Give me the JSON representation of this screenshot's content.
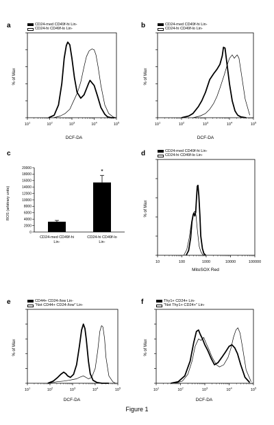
{
  "figure": {
    "caption": "Figure 1"
  },
  "panels": {
    "a": {
      "label": "a",
      "legend": [
        "CD24-med CD49f-hi Lin-",
        "CD24-hi CD49f-lo Lin-"
      ],
      "ylabel": "% of Max",
      "xlabel": "DCF-DA"
    },
    "b": {
      "label": "b",
      "legend": [
        "CD24-med CD49f-hi Lin-",
        "CD24-hi CD49f-lo Lin-"
      ],
      "ylabel": "% of Max",
      "xlabel": "DCF-DA"
    },
    "c": {
      "label": "c",
      "ylabel": "ROS (arbitrary units)",
      "categories": [
        "CD24-med CD49f-hi Lin-",
        "CD24-hi CD49f-lo Lin-"
      ],
      "significance": "*"
    },
    "d": {
      "label": "d",
      "legend": [
        "CD24-med CD49f-hi Lin-",
        "CD24-hi CD49f-lo Lin-"
      ],
      "ylabel": "% of Max",
      "xlabel": "MitoSOX Red"
    },
    "e": {
      "label": "e",
      "legend": [
        "CD44+ CD24-/low Lin-",
        "\"Not CD44+ CD24-/low\" Lin-"
      ],
      "ylabel": "% of Max",
      "xlabel": "DCF-DA"
    },
    "f": {
      "label": "f",
      "legend": [
        "Thy1+ CD24+ Lin-",
        "\"Not Thy1+ CD24+\" Lin-"
      ],
      "ylabel": "% of Max",
      "xlabel": "DCF-DA"
    }
  },
  "chart_data": [
    {
      "panel": "a",
      "type": "line",
      "x_scale": "log",
      "xlim": [
        10,
        100000
      ],
      "ylim": [
        0,
        100
      ],
      "xticks": [
        10,
        100,
        1000,
        10000,
        100000
      ],
      "xtick_labels": [
        "10^1",
        "10^2",
        "10^3",
        "10^4",
        "10^5"
      ],
      "yticks": [
        0,
        20,
        40,
        60,
        80,
        100
      ],
      "series": [
        {
          "name": "CD24-med CD49f-hi Lin-",
          "style": "thick",
          "x": [
            90,
            160,
            250,
            350,
            450,
            560,
            650,
            800,
            1000,
            1300,
            1700,
            2500,
            3500,
            4500,
            5500,
            6500,
            8000,
            10000,
            14000,
            20000,
            30000,
            40000,
            60000,
            80000
          ],
          "y": [
            0,
            3,
            15,
            40,
            70,
            85,
            89,
            86,
            70,
            47,
            30,
            23,
            27,
            34,
            40,
            44,
            41,
            38,
            26,
            12,
            4,
            1,
            0,
            0
          ]
        },
        {
          "name": "CD24-hi CD49f-lo Lin-",
          "style": "thin",
          "x": [
            150,
            300,
            500,
            800,
            1200,
            1800,
            2500,
            3500,
            4500,
            6000,
            8000,
            10000,
            12000,
            15000,
            20000,
            30000,
            45000,
            70000,
            100000
          ],
          "y": [
            0,
            2,
            5,
            10,
            20,
            30,
            42,
            60,
            72,
            79,
            81,
            80,
            74,
            60,
            38,
            15,
            5,
            1,
            0
          ]
        }
      ]
    },
    {
      "panel": "b",
      "type": "line",
      "x_scale": "log",
      "xlim": [
        10,
        100000
      ],
      "ylim": [
        0,
        100
      ],
      "xticks": [
        10,
        100,
        1000,
        10000,
        100000
      ],
      "xtick_labels": [
        "10^1",
        "10^2",
        "10^3",
        "10^4",
        "10^5"
      ],
      "yticks": [
        0,
        20,
        40,
        60,
        80,
        100
      ],
      "series": [
        {
          "name": "CD24-med CD49f-hi Lin-",
          "style": "thick",
          "x": [
            100,
            200,
            300,
            500,
            700,
            1000,
            1500,
            2200,
            3000,
            4000,
            5000,
            5600,
            6500,
            8000,
            10000,
            13000,
            17000,
            22000,
            30000,
            50000
          ],
          "y": [
            0,
            2,
            5,
            13,
            20,
            30,
            45,
            52,
            57,
            63,
            73,
            83,
            82,
            62,
            40,
            20,
            8,
            3,
            1,
            0
          ]
        },
        {
          "name": "CD24-hi CD49f-lo Lin-",
          "style": "thin",
          "x": [
            300,
            600,
            1000,
            1500,
            2200,
            3000,
            4000,
            6000,
            8000,
            10000,
            13000,
            16000,
            18000,
            21000,
            25000,
            32000,
            45000,
            70000
          ],
          "y": [
            0,
            2,
            5,
            10,
            17,
            25,
            35,
            50,
            62,
            70,
            74,
            70,
            72,
            74,
            70,
            50,
            22,
            3
          ]
        }
      ]
    },
    {
      "panel": "c",
      "type": "bar",
      "categories": [
        "CD24-med CD49f-hi Lin-",
        "CD24-hi CD49f-lo Lin-"
      ],
      "values": [
        3200,
        15400
      ],
      "errors": [
        400,
        2200
      ],
      "ylim": [
        0,
        20000
      ],
      "yticks": [
        0,
        2000,
        4000,
        6000,
        8000,
        10000,
        12000,
        14000,
        16000,
        18000,
        20000
      ],
      "ylabel": "ROS (arbitrary units)",
      "annotations": [
        {
          "category": "CD24-hi CD49f-lo Lin-",
          "text": "*"
        }
      ]
    },
    {
      "panel": "d",
      "type": "line",
      "x_scale": "log",
      "xlim": [
        10,
        100000
      ],
      "ylim": [
        0,
        100
      ],
      "xticks": [
        10,
        100,
        1000,
        10000,
        100000
      ],
      "xtick_labels": [
        "10",
        "100",
        "1000",
        "10000",
        "100000"
      ],
      "yticks": [
        0,
        20,
        40,
        60,
        80,
        100
      ],
      "series": [
        {
          "name": "CD24-med CD49f-hi Lin-",
          "style": "thick",
          "x": [
            150,
            190,
            230,
            260,
            290,
            310,
            340,
            370,
            400,
            430,
            460,
            500,
            550,
            600,
            700,
            800,
            950
          ],
          "y": [
            0,
            5,
            18,
            35,
            42,
            44,
            41,
            45,
            60,
            72,
            73,
            62,
            42,
            20,
            7,
            2,
            0
          ]
        },
        {
          "name": "CD24-hi CD49f-lo Lin-",
          "style": "thin",
          "x": [
            120,
            160,
            200,
            250,
            300,
            340,
            380,
            420,
            470,
            520,
            600,
            700,
            850
          ],
          "y": [
            0,
            6,
            18,
            35,
            44,
            46,
            42,
            30,
            18,
            9,
            4,
            1,
            0
          ]
        }
      ]
    },
    {
      "panel": "e",
      "type": "line",
      "x_scale": "log",
      "xlim": [
        10,
        100000
      ],
      "ylim": [
        0,
        100
      ],
      "xticks": [
        10,
        100,
        1000,
        10000,
        100000
      ],
      "xtick_labels": [
        "10^1",
        "10^2",
        "10^3",
        "10^4",
        "10^5"
      ],
      "yticks": [
        0,
        20,
        40,
        60,
        80,
        100
      ],
      "series": [
        {
          "name": "CD44+ CD24-/low Lin-",
          "style": "thick",
          "x": [
            80,
            140,
            220,
            300,
            400,
            500,
            600,
            800,
            1100,
            1500,
            2000,
            2500,
            3000,
            3500,
            4000,
            5000,
            6000,
            8000,
            12000,
            20000,
            40000
          ],
          "y": [
            0,
            3,
            8,
            12,
            15,
            13,
            10,
            8,
            12,
            25,
            50,
            72,
            80,
            74,
            60,
            30,
            13,
            4,
            1,
            0,
            0
          ]
        },
        {
          "name": "\"Not CD44+ CD24-/low\" Lin-",
          "style": "thin",
          "x": [
            80,
            200,
            400,
            700,
            1000,
            1500,
            2000,
            3000,
            5000,
            7000,
            10000,
            13000,
            16000,
            19000,
            22000,
            26000,
            30000,
            40000,
            60000,
            80000
          ],
          "y": [
            0,
            2,
            3,
            4,
            5,
            6,
            8,
            10,
            6,
            8,
            20,
            45,
            70,
            78,
            76,
            60,
            35,
            10,
            2,
            0
          ]
        }
      ]
    },
    {
      "panel": "f",
      "type": "line",
      "x_scale": "log",
      "xlim": [
        10,
        100000
      ],
      "ylim": [
        0,
        100
      ],
      "xticks": [
        10,
        100,
        1000,
        10000,
        100000
      ],
      "xtick_labels": [
        "10^1",
        "10^2",
        "10^3",
        "10^4",
        "10^5"
      ],
      "yticks": [
        0,
        20,
        40,
        60,
        80,
        100
      ],
      "series": [
        {
          "name": "Thy1+ CD24+ Lin-",
          "style": "thick",
          "x": [
            40,
            80,
            150,
            250,
            350,
            450,
            550,
            650,
            800,
            1000,
            1300,
            1800,
            2500,
            3500,
            5000,
            7000,
            10000,
            13000,
            17000,
            22000,
            30000,
            45000,
            70000
          ],
          "y": [
            0,
            2,
            10,
            30,
            55,
            70,
            72,
            66,
            60,
            52,
            45,
            34,
            25,
            28,
            35,
            42,
            50,
            52,
            48,
            40,
            25,
            8,
            1
          ]
        },
        {
          "name": "\"Not Thy1+ CD24+\" Lin-",
          "style": "thin",
          "x": [
            60,
            120,
            200,
            300,
            400,
            550,
            700,
            900,
            1100,
            1500,
            2000,
            3000,
            4000,
            6000,
            9000,
            12000,
            15000,
            19000,
            23000,
            28000,
            35000,
            50000,
            80000
          ],
          "y": [
            0,
            3,
            12,
            30,
            50,
            60,
            58,
            62,
            55,
            45,
            35,
            25,
            22,
            25,
            35,
            48,
            62,
            72,
            75,
            68,
            50,
            18,
            2
          ]
        }
      ]
    }
  ]
}
